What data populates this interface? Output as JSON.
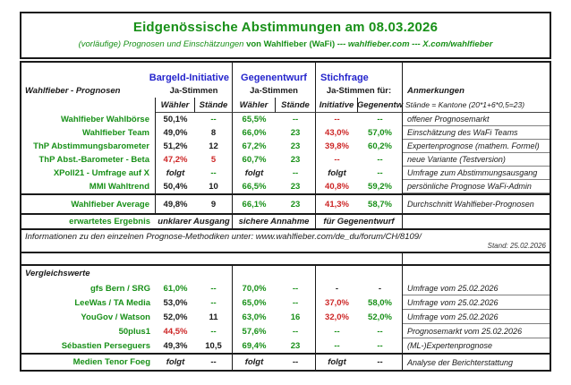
{
  "colors": {
    "green": "#189018",
    "red": "#cd2626",
    "blue": "#2424cc",
    "text": "#1a1a1a"
  },
  "title": {
    "main": "Eidgenössische Abstimmungen am 08.03.2026",
    "sub_prefix": "(vorläufige) Prognosen und Einschätzungen",
    "sub_by": "von Wahlfieber (WaFi)",
    "sub_links": "--- wahlfieber.com --- X.com/wahlfieber"
  },
  "header": {
    "left": "Wahlfieber - Prognosen",
    "groups": [
      {
        "title": "Bargeld-Initiative",
        "sub": "Ja-Stimmen"
      },
      {
        "title": "Gegenentwurf",
        "sub": "Ja-Stimmen"
      },
      {
        "title": "Stichfrage",
        "sub": "Ja-Stimmen für:"
      }
    ],
    "anmerkungen": "Anmerkungen",
    "cols": [
      "Wähler",
      "Stände",
      "Wähler",
      "Stände",
      "Initiative",
      "Gegenentw"
    ],
    "staende_note": "Stände = Kantone (20*1+6*0,5=23)"
  },
  "rows": [
    {
      "label": "Wahlfieber Wahlbörse",
      "cells": [
        {
          "t": "50,1%",
          "c": "k"
        },
        {
          "t": "--",
          "c": "g"
        },
        {
          "t": "65,5%",
          "c": "g"
        },
        {
          "t": "--",
          "c": "g"
        },
        {
          "t": "--",
          "c": "r"
        },
        {
          "t": "--",
          "c": "g"
        }
      ],
      "note": "offener Prognosemarkt"
    },
    {
      "label": "Wahlfieber Team",
      "cells": [
        {
          "t": "49,0%",
          "c": "k"
        },
        {
          "t": "8",
          "c": "k"
        },
        {
          "t": "66,0%",
          "c": "g"
        },
        {
          "t": "23",
          "c": "g"
        },
        {
          "t": "43,0%",
          "c": "r"
        },
        {
          "t": "57,0%",
          "c": "g"
        }
      ],
      "note": "Einschätzung des WaFi Teams"
    },
    {
      "label": "ThP Abstimmungsbarometer",
      "cells": [
        {
          "t": "51,2%",
          "c": "k"
        },
        {
          "t": "12",
          "c": "k"
        },
        {
          "t": "67,2%",
          "c": "g"
        },
        {
          "t": "23",
          "c": "g"
        },
        {
          "t": "39,8%",
          "c": "r"
        },
        {
          "t": "60,2%",
          "c": "g"
        }
      ],
      "note": "Expertenprognose (mathem. Formel)"
    },
    {
      "label": "ThP Abst.-Barometer - Beta",
      "cells": [
        {
          "t": "47,2%",
          "c": "r"
        },
        {
          "t": "5",
          "c": "r"
        },
        {
          "t": "60,7%",
          "c": "g"
        },
        {
          "t": "23",
          "c": "g"
        },
        {
          "t": "--",
          "c": "r"
        },
        {
          "t": "--",
          "c": "g"
        }
      ],
      "note": "neue Variante (Testversion)"
    },
    {
      "label": "XPoll21 - Umfrage auf X",
      "cells": [
        {
          "t": "folgt",
          "c": "k",
          "f": 1
        },
        {
          "t": "--",
          "c": "g"
        },
        {
          "t": "folgt",
          "c": "k",
          "f": 1
        },
        {
          "t": "--",
          "c": "g"
        },
        {
          "t": "folgt",
          "c": "k",
          "f": 1
        },
        {
          "t": "--",
          "c": "g"
        }
      ],
      "note": "Umfrage zum Abstimmungsausgang"
    },
    {
      "label": "MMI Wahltrend",
      "cells": [
        {
          "t": "50,4%",
          "c": "k"
        },
        {
          "t": "10",
          "c": "k"
        },
        {
          "t": "66,5%",
          "c": "g"
        },
        {
          "t": "23",
          "c": "g"
        },
        {
          "t": "40,8%",
          "c": "r"
        },
        {
          "t": "59,2%",
          "c": "g"
        }
      ],
      "note": "persönliche Prognose WaFi-Admin"
    }
  ],
  "average": {
    "label": "Wahlfieber Average",
    "cells": [
      {
        "t": "49,8%",
        "c": "k"
      },
      {
        "t": "9",
        "c": "k"
      },
      {
        "t": "66,1%",
        "c": "g"
      },
      {
        "t": "23",
        "c": "g"
      },
      {
        "t": "41,3%",
        "c": "r"
      },
      {
        "t": "58,7%",
        "c": "g"
      }
    ],
    "note": "Durchschnitt Wahlfieber-Prognosen"
  },
  "expected": {
    "label": "erwartetes Ergebnis",
    "bargeld": "unklarer Ausgang",
    "gegenentwurf": "sichere Annahme",
    "stichfrage": "für Gegenentwurf"
  },
  "info": {
    "text": "Informationen zu den einzelnen Prognose-Methodiken unter: www.wahlfieber.com/de_du/forum/CH/8109/",
    "stand": "Stand: 25.02.2026"
  },
  "vergleich": {
    "title": "Vergleichswerte",
    "rows": [
      {
        "label": "gfs Bern / SRG",
        "cells": [
          {
            "t": "61,0%",
            "c": "g"
          },
          {
            "t": "--",
            "c": "g"
          },
          {
            "t": "70,0%",
            "c": "g"
          },
          {
            "t": "--",
            "c": "g"
          },
          {
            "t": "-",
            "c": "k"
          },
          {
            "t": "-",
            "c": "k"
          }
        ],
        "note": "Umfrage vom 25.02.2026"
      },
      {
        "label": "LeeWas / TA Media",
        "cells": [
          {
            "t": "53,0%",
            "c": "k"
          },
          {
            "t": "--",
            "c": "g"
          },
          {
            "t": "65,0%",
            "c": "g"
          },
          {
            "t": "--",
            "c": "g"
          },
          {
            "t": "37,0%",
            "c": "r"
          },
          {
            "t": "58,0%",
            "c": "g"
          }
        ],
        "note": "Umfrage vom 25.02.2026"
      },
      {
        "label": "YouGov / Watson",
        "cells": [
          {
            "t": "52,0%",
            "c": "k"
          },
          {
            "t": "11",
            "c": "k"
          },
          {
            "t": "63,0%",
            "c": "g"
          },
          {
            "t": "16",
            "c": "g"
          },
          {
            "t": "32,0%",
            "c": "r"
          },
          {
            "t": "52,0%",
            "c": "g"
          }
        ],
        "note": "Umfrage vom 25.02.2026"
      },
      {
        "label": "50plus1",
        "cells": [
          {
            "t": "44,5%",
            "c": "r"
          },
          {
            "t": "--",
            "c": "g"
          },
          {
            "t": "57,6%",
            "c": "g"
          },
          {
            "t": "--",
            "c": "g"
          },
          {
            "t": "--",
            "c": "g"
          },
          {
            "t": "--",
            "c": "g"
          }
        ],
        "note": "Prognosemarkt vom 25.02.2026"
      },
      {
        "label": "Sébastien Perseguers",
        "cells": [
          {
            "t": "49,3%",
            "c": "k"
          },
          {
            "t": "10,5",
            "c": "k"
          },
          {
            "t": "69,4%",
            "c": "g"
          },
          {
            "t": "23",
            "c": "g"
          },
          {
            "t": "--",
            "c": "g"
          },
          {
            "t": "--",
            "c": "g"
          }
        ],
        "note": "(ML-)Expertenprognose"
      }
    ],
    "final_row": {
      "label": "Medien Tenor Foeg",
      "cells": [
        {
          "t": "folgt",
          "c": "k",
          "f": 1
        },
        {
          "t": "--",
          "c": "k"
        },
        {
          "t": "folgt",
          "c": "k",
          "f": 1
        },
        {
          "t": "--",
          "c": "k"
        },
        {
          "t": "folgt",
          "c": "k",
          "f": 1
        },
        {
          "t": "--",
          "c": "k"
        }
      ],
      "note": "Analyse der Berichterstattung"
    }
  }
}
